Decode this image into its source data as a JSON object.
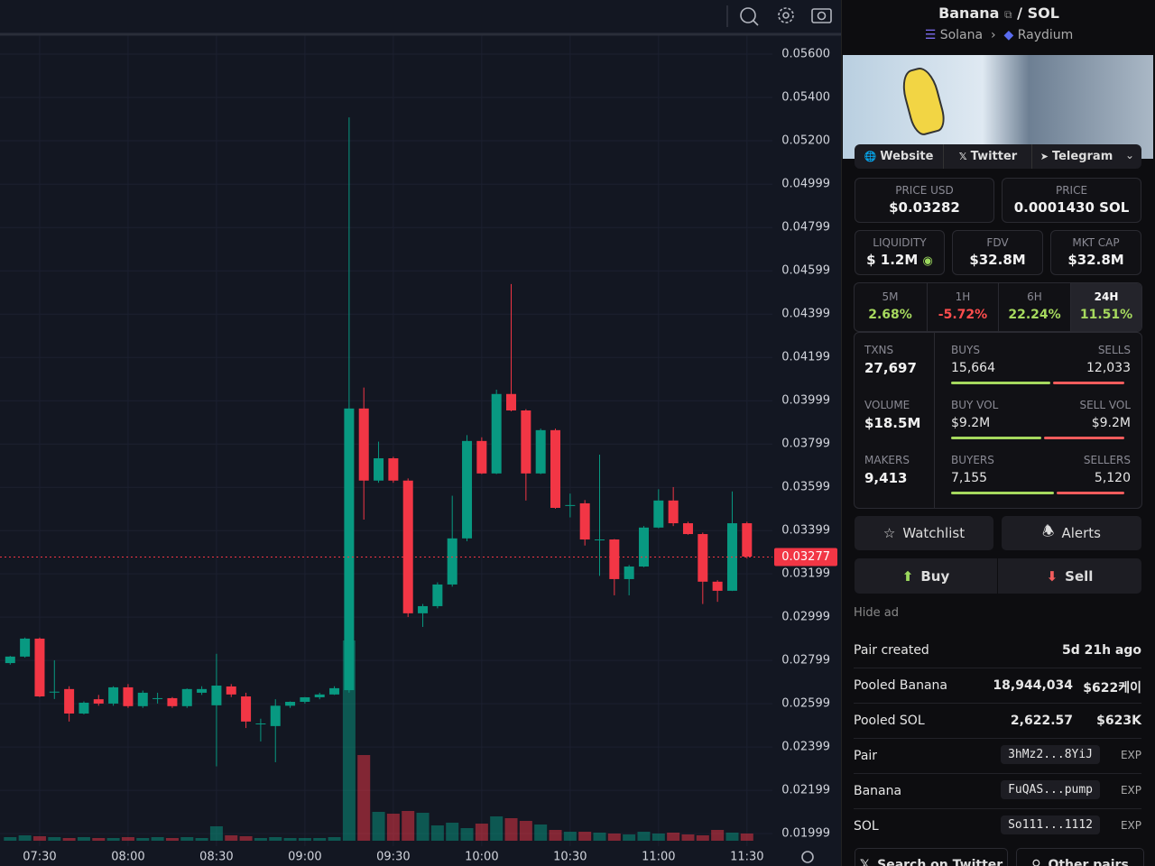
{
  "chart": {
    "type": "candlestick",
    "up_color": "#089981",
    "down_color": "#f23645",
    "ylim": [
      0.01933,
      0.0585
    ],
    "yticks": [
      {
        "value": 0.056,
        "label": "0.05600"
      },
      {
        "value": 0.054,
        "label": "0.05400"
      },
      {
        "value": 0.052,
        "label": "0.05200"
      },
      0.04999,
      0.04799,
      0.04599,
      0.04399,
      0.04199,
      0.03999,
      0.03799,
      0.03599,
      0.03399,
      0.03199,
      0.02999,
      0.02799,
      0.02599,
      0.02399,
      0.02199,
      0.01999
    ],
    "xticks": [
      "07:30",
      "08:00",
      "08:30",
      "09:00",
      "09:30",
      "10:00",
      "10:30",
      "11:00",
      "11:30"
    ],
    "current_price": 0.03277,
    "open": [
      0.02787,
      0.02817,
      0.029,
      0.02655,
      0.02667,
      0.02554,
      0.0262,
      0.026,
      0.02675,
      0.02588,
      0.02625,
      0.02625,
      0.02588,
      0.0265,
      0.02592,
      0.02679,
      0.02633,
      0.02508,
      0.02496,
      0.0259,
      0.02608,
      0.02629,
      0.02642,
      0.02662,
      0.03963,
      0.0363,
      0.03733,
      0.0363,
      0.03017,
      0.0305,
      0.0315,
      0.03363,
      0.03813,
      0.03663,
      0.0403,
      0.03954,
      0.03663,
      0.03863,
      0.03517,
      0.03525,
      0.03358,
      0.03358,
      0.03175,
      0.03233,
      0.03413,
      0.03538,
      0.03433,
      0.03383,
      0.03163,
      0.03121,
      0.03433
    ],
    "high": [
      0.0282,
      0.02905,
      0.02905,
      0.028,
      0.0268,
      0.0261,
      0.0264,
      0.0268,
      0.0269,
      0.0266,
      0.0265,
      0.0263,
      0.0267,
      0.0268,
      0.0283,
      0.0269,
      0.0265,
      0.0253,
      0.0262,
      0.0261,
      0.0263,
      0.0265,
      0.0268,
      0.05308,
      0.0406,
      0.0381,
      0.0374,
      0.0364,
      0.0306,
      0.0316,
      0.0356,
      0.0384,
      0.0383,
      0.0405,
      0.04538,
      0.0396,
      0.0387,
      0.0387,
      0.0357,
      0.0354,
      0.0375,
      0.0336,
      0.0324,
      0.0342,
      0.0359,
      0.036,
      0.0344,
      0.0339,
      0.0317,
      0.0358,
      0.0344
    ],
    "low": [
      0.0278,
      0.02812,
      0.0263,
      0.02621,
      0.02517,
      0.0255,
      0.0259,
      0.0259,
      0.0258,
      0.0258,
      0.026,
      0.0258,
      0.0258,
      0.0264,
      0.0231,
      0.0263,
      0.02487,
      0.02425,
      0.02329,
      0.0258,
      0.026,
      0.0262,
      0.0264,
      0.0265,
      0.0345,
      0.0362,
      0.0362,
      0.03,
      0.02954,
      0.0304,
      0.0314,
      0.0335,
      0.0366,
      0.0366,
      0.0395,
      0.03538,
      0.0366,
      0.035,
      0.0346,
      0.0333,
      0.0319,
      0.031,
      0.031,
      0.0323,
      0.0341,
      0.0342,
      0.0338,
      0.0306,
      0.0307,
      0.0312,
      0.0327
    ],
    "close": [
      0.02817,
      0.029,
      0.02633,
      0.02655,
      0.02554,
      0.02604,
      0.026,
      0.02675,
      0.02588,
      0.0265,
      0.02625,
      0.02588,
      0.02667,
      0.02667,
      0.02683,
      0.02642,
      0.02517,
      0.02508,
      0.0259,
      0.02608,
      0.02629,
      0.02642,
      0.02671,
      0.03963,
      0.0363,
      0.03733,
      0.0363,
      0.03017,
      0.0305,
      0.0315,
      0.03363,
      0.03813,
      0.03663,
      0.0403,
      0.03954,
      0.03663,
      0.03863,
      0.03504,
      0.03517,
      0.03358,
      0.03358,
      0.03175,
      0.03233,
      0.03413,
      0.03538,
      0.03433,
      0.03383,
      0.03163,
      0.03121,
      0.03433,
      0.03279
    ],
    "volume_lim": [
      0,
      230
    ],
    "volume": [
      4,
      6,
      5,
      4,
      3,
      4,
      3,
      3,
      4,
      3,
      4,
      3,
      4,
      3,
      16,
      6,
      5,
      3,
      4,
      3,
      3,
      3,
      4,
      222,
      95,
      32,
      30,
      33,
      31,
      17,
      20,
      14,
      19,
      27,
      25,
      22,
      18,
      12,
      10,
      10,
      9,
      8,
      7,
      10,
      8,
      9,
      7,
      6,
      12,
      9,
      8
    ]
  },
  "header": {
    "token": "Banana",
    "separator": "/",
    "quote": "SOL",
    "chain": "Solana",
    "dex": "Raydium"
  },
  "links": [
    "Website",
    "Twitter",
    "Telegram"
  ],
  "stats": {
    "price_usd": {
      "label": "PRICE USD",
      "value": "$0.03282"
    },
    "price": {
      "label": "PRICE",
      "value": "0.0001430 SOL"
    },
    "liquidity": {
      "label": "LIQUIDITY",
      "value": "$ 1.2M"
    },
    "fdv": {
      "label": "FDV",
      "value": "$32.8M"
    },
    "mkt_cap": {
      "label": "MKT CAP",
      "value": "$32.8M"
    }
  },
  "changes": [
    {
      "label": "5M",
      "value": "2.68%"
    },
    {
      "label": "1H",
      "value": "-5.72%"
    },
    {
      "label": "6H",
      "value": "22.24%"
    },
    {
      "label": "24H",
      "value": "11.51%"
    }
  ],
  "activity": [
    {
      "label": "TXNS",
      "value": "27,697",
      "left_label": "BUYS",
      "left_value": "15,664",
      "right_label": "SELLS",
      "right_value": "12,033"
    },
    {
      "label": "VOLUME",
      "value": "$18.5M",
      "left_label": "BUY VOL",
      "left_value": "$9.2M",
      "right_label": "SELL VOL",
      "right_value": "$9.2M"
    },
    {
      "label": "MAKERS",
      "value": "9,413",
      "left_label": "BUYERS",
      "left_value": "7,155",
      "right_label": "SELLERS",
      "right_value": "5,120"
    }
  ],
  "buttons": {
    "watchlist": "Watchlist",
    "alerts": "Alerts",
    "buy": "Buy",
    "sell": "Sell"
  },
  "hide_ad": "Hide ad",
  "info": [
    {
      "label": "Pair created",
      "value": "5d 21h ago"
    },
    {
      "label": "Pooled Banana",
      "value": "18,944,034",
      "usd": "$622케이"
    },
    {
      "label": "Pooled SOL",
      "value": "2,622.57",
      "usd": "$623K"
    },
    {
      "label": "Pair",
      "address": "3hMz2...8YiJ",
      "explorer": "EXP"
    },
    {
      "label": "Banana",
      "address": "FuQAS...pump",
      "explorer": "EXP"
    },
    {
      "label": "SOL",
      "address": "So111...1112",
      "explorer": "EXP"
    }
  ],
  "footer": [
    "Search on Twitter",
    "Other pairs"
  ]
}
